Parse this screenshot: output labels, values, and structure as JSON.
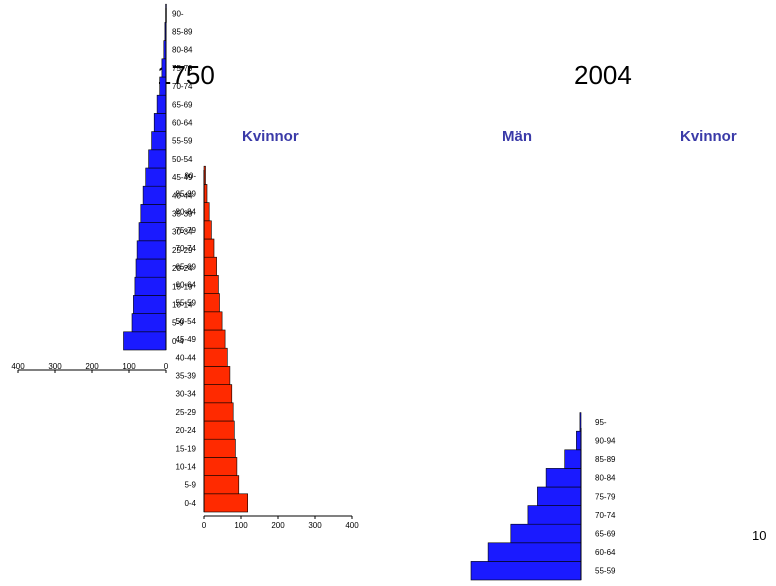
{
  "titles": {
    "year_left": "1750",
    "year_right": "2004",
    "header_kvinnor_left": "Kvinnor",
    "header_man_right": "Män",
    "header_kvinnor_right": "Kvinnor"
  },
  "slide_number": "10",
  "colors": {
    "men": "#1a1aff",
    "women": "#ff2a00",
    "header": "#3a3aa8"
  },
  "chart_data": [
    {
      "type": "bar",
      "orientation": "horizontal",
      "year": "1750",
      "series_side": "left",
      "categories": [
        "0-4",
        "5-9",
        "10-14",
        "15-19",
        "20-24",
        "25-29",
        "30-34",
        "35-39",
        "40-44",
        "45-49",
        "50-54",
        "55-59",
        "60-64",
        "65-69",
        "70-74",
        "75-79",
        "80-84",
        "85-89",
        "90-"
      ],
      "values": [
        115,
        92,
        88,
        84,
        81,
        78,
        73,
        68,
        62,
        55,
        47,
        39,
        32,
        24,
        17,
        11,
        6,
        3,
        1
      ],
      "x_ticks": [
        "400",
        "300",
        "200",
        "100",
        "0"
      ],
      "xlim": [
        0,
        400
      ],
      "color": "#1a1aff"
    },
    {
      "type": "bar",
      "orientation": "horizontal",
      "year": "1750",
      "series_side": "right",
      "categories": [
        "0-4",
        "5-9",
        "10-14",
        "15-19",
        "20-24",
        "25-29",
        "30-34",
        "35-39",
        "40-44",
        "45-49",
        "50-54",
        "55-59",
        "60-64",
        "65-69",
        "70-74",
        "75-79",
        "80-84",
        "85-89",
        "90-"
      ],
      "values": [
        118,
        94,
        89,
        85,
        82,
        79,
        75,
        70,
        63,
        57,
        49,
        42,
        39,
        34,
        27,
        20,
        14,
        8,
        4
      ],
      "x_ticks": [
        "0",
        "100",
        "200",
        "300",
        "400"
      ],
      "xlim": [
        0,
        400
      ],
      "color": "#ff2a00"
    },
    {
      "type": "bar",
      "orientation": "horizontal",
      "year": "2004",
      "series_side": "left",
      "categories": [
        "55-59",
        "60-64",
        "65-69",
        "70-74",
        "75-79",
        "80-84",
        "85-89",
        "90-94",
        "95-"
      ],
      "values": [
        290,
        245,
        185,
        140,
        115,
        92,
        43,
        12,
        3
      ],
      "xlim": [
        0,
        400
      ],
      "color": "#1a1aff"
    }
  ]
}
